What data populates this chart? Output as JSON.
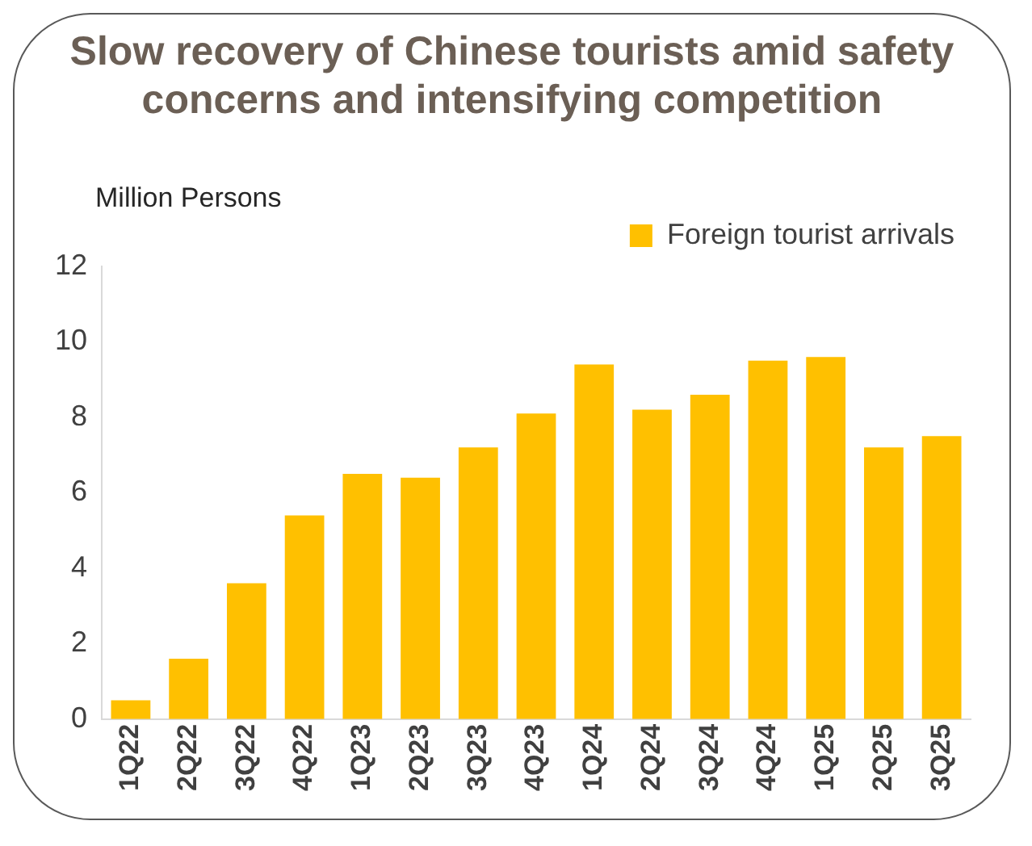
{
  "chart_data": {
    "type": "bar",
    "title": "Slow recovery of Chinese tourists amid safety concerns and intensifying competition",
    "ylabel": "Million Persons",
    "categories": [
      "1Q22",
      "2Q22",
      "3Q22",
      "4Q22",
      "1Q23",
      "2Q23",
      "3Q23",
      "4Q23",
      "1Q24",
      "2Q24",
      "3Q24",
      "4Q24",
      "1Q25",
      "2Q25",
      "3Q25"
    ],
    "series": [
      {
        "name": "Foreign tourist arrivals",
        "color": "#ffc000",
        "values": [
          0.5,
          1.6,
          3.6,
          5.4,
          6.5,
          6.4,
          7.2,
          8.1,
          9.4,
          8.2,
          8.6,
          9.5,
          9.6,
          7.2,
          7.5
        ]
      }
    ],
    "ylim": [
      0,
      12
    ],
    "yticks": [
      0,
      2,
      4,
      6,
      8,
      10,
      12
    ],
    "grid": false,
    "legend": "top right"
  }
}
